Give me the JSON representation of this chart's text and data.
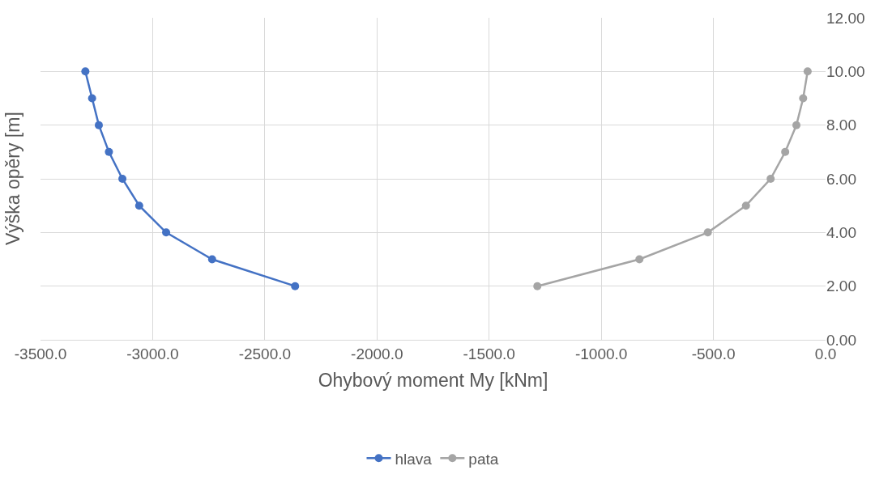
{
  "chart_data": {
    "type": "line",
    "xlabel": "Ohybový moment My [kNm]",
    "ylabel": "Výška opěry [m]",
    "series": [
      {
        "name": "hlava",
        "color": "#4472c4",
        "x": [
          -3300,
          -3270,
          -3240,
          -3195,
          -3135,
          -3060,
          -2940,
          -2735,
          -2365
        ],
        "values": [
          10,
          9,
          8,
          7,
          6,
          5,
          4,
          3,
          2
        ]
      },
      {
        "name": "pata",
        "color": "#a5a5a5",
        "x": [
          -80,
          -100,
          -130,
          -180,
          -245,
          -355,
          -525,
          -830,
          -1285
        ],
        "values": [
          10,
          9,
          8,
          7,
          6,
          5,
          4,
          3,
          2
        ]
      }
    ],
    "xlim": [
      -3500,
      0
    ],
    "ylim": [
      0,
      12
    ],
    "xticks": [
      {
        "value": -3500,
        "label": "-3500.0"
      },
      {
        "value": -3000,
        "label": "-3000.0"
      },
      {
        "value": -2500,
        "label": "-2500.0"
      },
      {
        "value": -2000,
        "label": "-2000.0"
      },
      {
        "value": -1500,
        "label": "-1500.0"
      },
      {
        "value": -1000,
        "label": "-1000.0"
      },
      {
        "value": -500,
        "label": "-500.0"
      },
      {
        "value": 0,
        "label": "0.0"
      }
    ],
    "yticks": [
      {
        "value": 0,
        "label": "0.00"
      },
      {
        "value": 2,
        "label": "2.00"
      },
      {
        "value": 4,
        "label": "4.00"
      },
      {
        "value": 6,
        "label": "6.00"
      },
      {
        "value": 8,
        "label": "8.00"
      },
      {
        "value": 10,
        "label": "10.00"
      },
      {
        "value": 12,
        "label": "12.00"
      }
    ],
    "grid": true,
    "legend": "bottom",
    "marker": "circle",
    "line_style": "solid"
  }
}
